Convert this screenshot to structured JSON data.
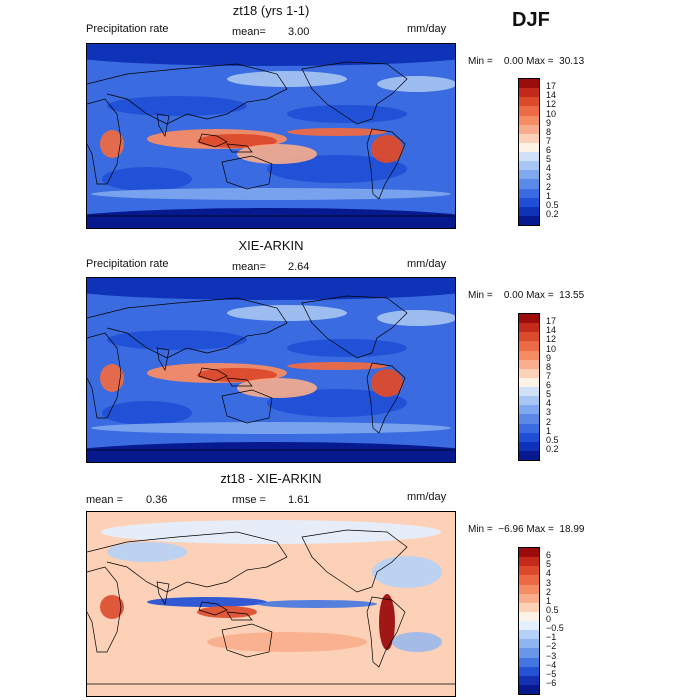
{
  "season": "DJF",
  "panels": [
    {
      "id": "model",
      "title": "zt18 (yrs 1-1)",
      "left_label": "Precipitation rate",
      "mean_label": "mean=",
      "mean_value": "3.00",
      "units": "mm/day",
      "minmax": "Min =    0.00 Max =  30.13",
      "colorbar": {
        "ticks": [
          "17",
          "14",
          "12",
          "10",
          "9",
          "8",
          "7",
          "6",
          "5",
          "4",
          "3",
          "2",
          "1",
          "0.5",
          "0.2"
        ],
        "colors": [
          "#9b0d0d",
          "#c42a1c",
          "#dc4a2c",
          "#ec6a44",
          "#f58c64",
          "#f9ad8c",
          "#fcd1b8",
          "#fdf2e6",
          "#cfe0f7",
          "#a8c6f3",
          "#7fa8ee",
          "#5a89e8",
          "#3a6be0",
          "#1f4fd6",
          "#0f33b8",
          "#06198f"
        ]
      }
    },
    {
      "id": "obs",
      "title": "XIE-ARKIN",
      "left_label": "Precipitation rate",
      "mean_label": "mean=",
      "mean_value": "2.64",
      "units": "mm/day",
      "minmax": "Min =    0.00 Max =  13.55",
      "colorbar": {
        "ticks": [
          "17",
          "14",
          "12",
          "10",
          "9",
          "8",
          "7",
          "6",
          "5",
          "4",
          "3",
          "2",
          "1",
          "0.5",
          "0.2"
        ],
        "colors": [
          "#9b0d0d",
          "#c42a1c",
          "#dc4a2c",
          "#ec6a44",
          "#f58c64",
          "#f9ad8c",
          "#fcd1b8",
          "#fdf2e6",
          "#cfe0f7",
          "#a8c6f3",
          "#7fa8ee",
          "#5a89e8",
          "#3a6be0",
          "#1f4fd6",
          "#0f33b8",
          "#06198f"
        ]
      }
    },
    {
      "id": "diff",
      "title": "zt18 - XIE-ARKIN",
      "mean_label": "mean =",
      "mean_value": "0.36",
      "rmse_label": "rmse =",
      "rmse_value": "1.61",
      "units": "mm/day",
      "minmax": "Min =  −6.96 Max =  18.99",
      "colorbar": {
        "ticks": [
          "6",
          "5",
          "4",
          "3",
          "2",
          "1",
          "0.5",
          "0",
          "−0.5",
          "−1",
          "−2",
          "−3",
          "−4",
          "−5",
          "−6"
        ],
        "colors": [
          "#9b0d0d",
          "#c42a1c",
          "#dc4a2c",
          "#ec6a44",
          "#f58c64",
          "#f9ad8c",
          "#fcd1b8",
          "#fdf2e6",
          "#e4efff",
          "#b6d1f7",
          "#8db5f0",
          "#6896e8",
          "#4375e0",
          "#2552d4",
          "#1331b0",
          "#06198f"
        ]
      }
    }
  ]
}
